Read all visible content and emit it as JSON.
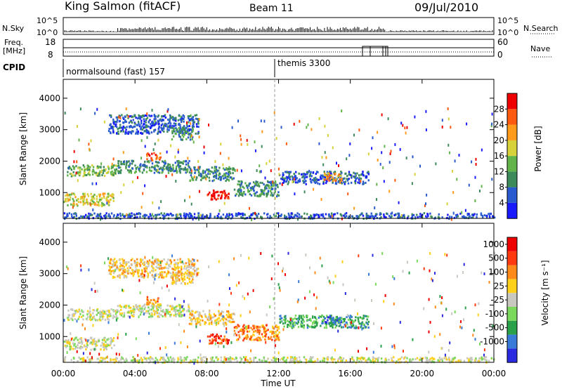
{
  "header": {
    "station": "King Salmon (fitACF)",
    "beam": "Beam 11",
    "date": "09/Jul/2010"
  },
  "small_panels": {
    "nsky_label": "N.Sky",
    "nsearch_label": "N.Search",
    "freq_label": "Freq.",
    "freq_unit": "[MHz]",
    "nave_label": "Nave",
    "cpid_label": "CPID",
    "noise_ticks_left": [
      "10^5",
      "10^0"
    ],
    "noise_ticks_right": [
      "10^5",
      "10^0"
    ],
    "freq_ticks": [
      "18",
      "8"
    ],
    "nave_ticks": [
      "60",
      "0"
    ]
  },
  "cpid": {
    "segments": [
      {
        "label": "normalsound (fast) 157",
        "start_hour": 0
      },
      {
        "label": "themis 3300",
        "start_hour": 12
      }
    ]
  },
  "x_axis": {
    "label": "Time UT",
    "range_hours": [
      0,
      24
    ],
    "ticks": [
      {
        "hour": 0,
        "label": "00:00"
      },
      {
        "hour": 4,
        "label": "04:00"
      },
      {
        "hour": 8,
        "label": "08:00"
      },
      {
        "hour": 12,
        "label": "12:00"
      },
      {
        "hour": 16,
        "label": "16:00"
      },
      {
        "hour": 20,
        "label": "20:00"
      },
      {
        "hour": 24,
        "label": "00:00"
      }
    ]
  },
  "chart_data": [
    {
      "type": "heatmap",
      "name": "power",
      "ylabel": "Slant Range [km]",
      "ylim": [
        180,
        4600
      ],
      "yticks": [
        1000,
        2000,
        3000,
        4000
      ],
      "xlim": [
        0,
        24
      ],
      "colorbar": {
        "label": "Power [dB]",
        "tick_labels": [
          "4",
          "8",
          "12",
          "16",
          "20",
          "24",
          "28"
        ],
        "colors": [
          "#1a1aff",
          "#2a5ad0",
          "#3d8a5a",
          "#62b44a",
          "#d8d23a",
          "#ff9a1a",
          "#ff5a10",
          "#ee0000"
        ]
      },
      "regions": [
        {
          "t": [
            0.2,
            3.0
          ],
          "r": [
            1550,
            1900
          ],
          "level": 3
        },
        {
          "t": [
            3.0,
            7.0
          ],
          "r": [
            1650,
            2050
          ],
          "level": 2
        },
        {
          "t": [
            4.6,
            5.4
          ],
          "r": [
            2050,
            2300
          ],
          "level": 6
        },
        {
          "t": [
            7.0,
            9.5
          ],
          "r": [
            1400,
            1850
          ],
          "level": 2
        },
        {
          "t": [
            8.0,
            9.2
          ],
          "r": [
            800,
            1100
          ],
          "level": 7
        },
        {
          "t": [
            9.5,
            12.0
          ],
          "r": [
            900,
            1400
          ],
          "level": 2
        },
        {
          "t": [
            12.0,
            17.0
          ],
          "r": [
            1300,
            1700
          ],
          "level": 1
        },
        {
          "t": [
            14.5,
            15.5
          ],
          "r": [
            1400,
            1650
          ],
          "level": 5
        },
        {
          "t": [
            0.0,
            2.8
          ],
          "r": [
            600,
            1000
          ],
          "level": 4
        },
        {
          "t": [
            2.5,
            7.5
          ],
          "r": [
            2900,
            3500
          ],
          "level": 1
        },
        {
          "t": [
            6.0,
            7.2
          ],
          "r": [
            2700,
            3100
          ],
          "level": 2
        },
        {
          "t": [
            0.0,
            24.0
          ],
          "r": [
            200,
            380
          ],
          "level": 1
        }
      ]
    },
    {
      "type": "heatmap",
      "name": "velocity",
      "ylabel": "Slant Range [km]",
      "ylim": [
        180,
        4600
      ],
      "yticks": [
        1000,
        2000,
        3000,
        4000
      ],
      "xlim": [
        0,
        24
      ],
      "colorbar": {
        "label": "Velocity [m s⁻¹]",
        "tick_labels": [
          "1000",
          "500",
          "100",
          "25",
          "-25",
          "-100",
          "-500",
          "-1000"
        ],
        "colors": [
          "#2a2ae0",
          "#3a7ad8",
          "#2aa04a",
          "#7ad85a",
          "#c8c8c0",
          "#ffd01a",
          "#ff8a1a",
          "#ff3a10",
          "#ee0000"
        ]
      },
      "regions": [
        {
          "t": [
            0.2,
            3.0
          ],
          "r": [
            1550,
            1900
          ],
          "level": 4
        },
        {
          "t": [
            3.0,
            7.0
          ],
          "r": [
            1650,
            2050
          ],
          "level": 4
        },
        {
          "t": [
            4.6,
            5.4
          ],
          "r": [
            2050,
            2300
          ],
          "level": 6
        },
        {
          "t": [
            7.0,
            9.5
          ],
          "r": [
            1400,
            1850
          ],
          "level": 5
        },
        {
          "t": [
            8.0,
            9.2
          ],
          "r": [
            800,
            1100
          ],
          "level": 7
        },
        {
          "t": [
            9.5,
            12.0
          ],
          "r": [
            900,
            1400
          ],
          "level": 6
        },
        {
          "t": [
            12.0,
            17.0
          ],
          "r": [
            1300,
            1700
          ],
          "level": 2
        },
        {
          "t": [
            14.5,
            15.5
          ],
          "r": [
            1400,
            1650
          ],
          "level": 1
        },
        {
          "t": [
            0.0,
            2.8
          ],
          "r": [
            600,
            1000
          ],
          "level": 4
        },
        {
          "t": [
            2.5,
            7.5
          ],
          "r": [
            2900,
            3500
          ],
          "level": 5
        },
        {
          "t": [
            6.0,
            7.2
          ],
          "r": [
            2700,
            3100
          ],
          "level": 5
        },
        {
          "t": [
            0.0,
            24.0
          ],
          "r": [
            200,
            380
          ],
          "level": 4
        }
      ]
    }
  ]
}
